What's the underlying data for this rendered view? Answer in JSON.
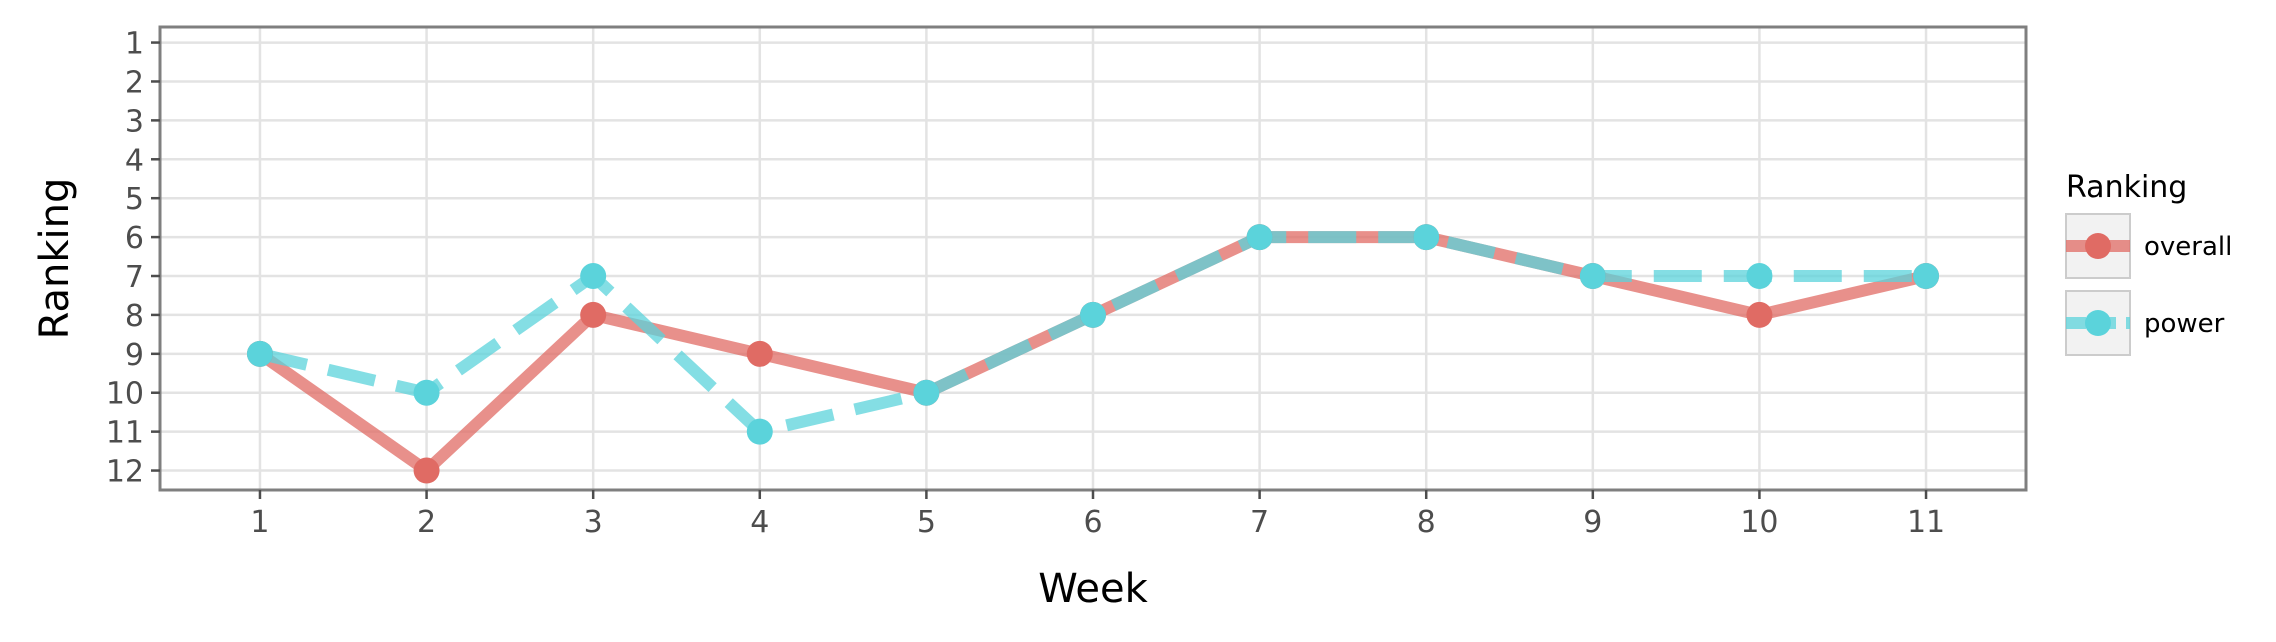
{
  "chart_data": {
    "type": "line",
    "xlabel": "Week",
    "ylabel": "Ranking",
    "x": [
      1,
      2,
      3,
      4,
      5,
      6,
      7,
      8,
      9,
      10,
      11
    ],
    "x_ticks": [
      "1",
      "2",
      "3",
      "4",
      "5",
      "6",
      "7",
      "8",
      "9",
      "10",
      "11"
    ],
    "y_ticks": [
      "1",
      "2",
      "3",
      "4",
      "5",
      "6",
      "7",
      "8",
      "9",
      "10",
      "11",
      "12"
    ],
    "xlim": [
      0.4,
      11.6
    ],
    "ylim": [
      12.5,
      0.6
    ],
    "y_reversed": true,
    "grid": true,
    "legend": {
      "title": "Ranking",
      "placement": "right"
    },
    "series": [
      {
        "name": "overall",
        "color": "#e06b64",
        "line_style": "solid",
        "values": [
          9,
          12,
          8,
          9,
          10,
          8,
          6,
          6,
          7,
          8,
          7
        ]
      },
      {
        "name": "power",
        "color": "#5bd3db",
        "line_style": "dashed",
        "values": [
          9,
          10,
          7,
          11,
          10,
          8,
          6,
          6,
          7,
          7,
          7
        ]
      }
    ]
  }
}
